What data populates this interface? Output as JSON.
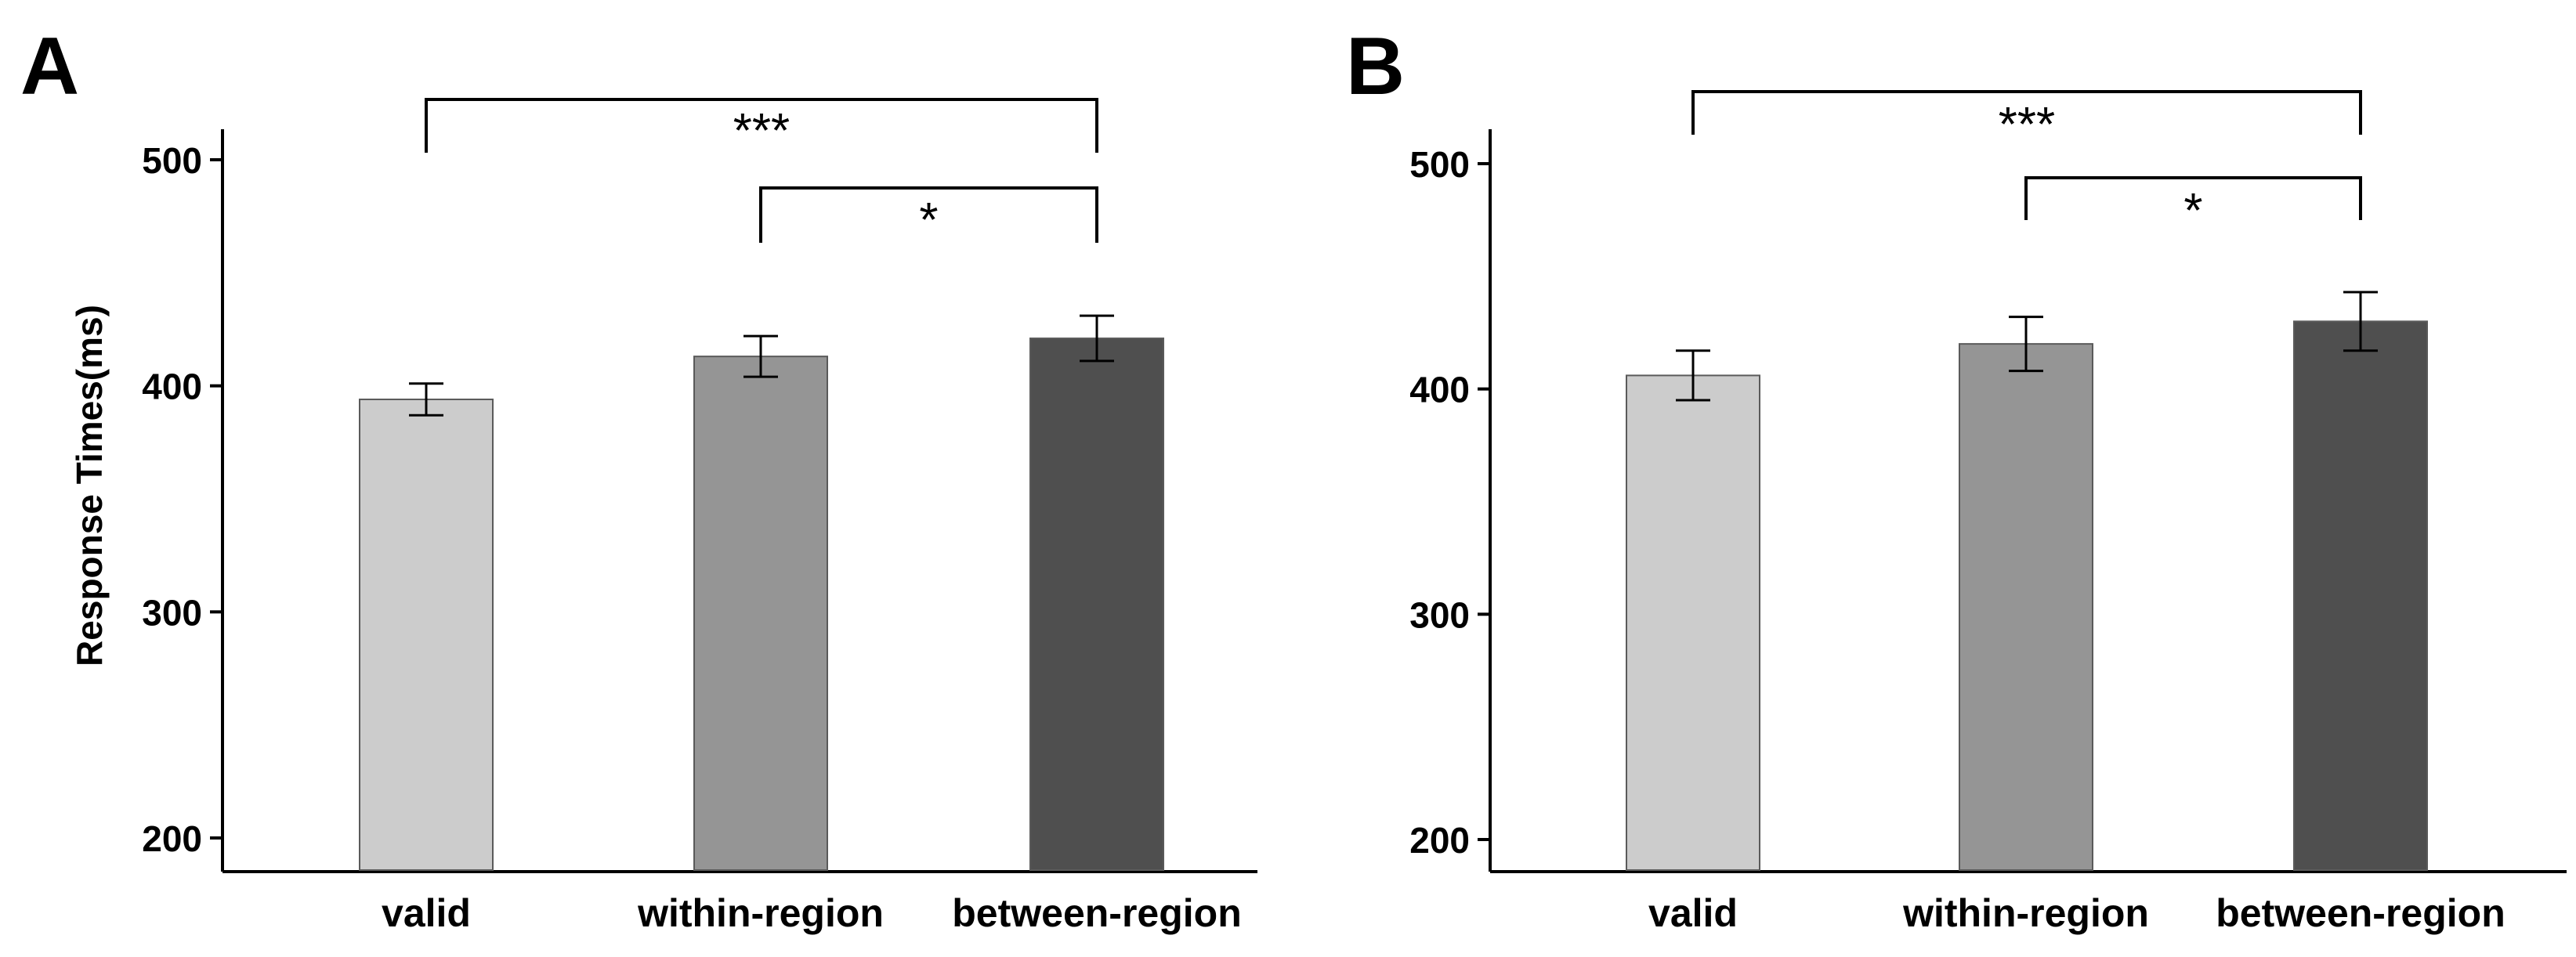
{
  "chart_data": [
    {
      "panel_label": "A",
      "type": "bar",
      "title": "",
      "xlabel": "",
      "ylabel": "Response Times(ms)",
      "ylim": [
        190,
        510
      ],
      "yticks": [
        200,
        300,
        400,
        500
      ],
      "categories": [
        "valid",
        "within-region",
        "between-region"
      ],
      "values": [
        394,
        413,
        421
      ],
      "errors": [
        7,
        9,
        10
      ],
      "colors": [
        "#cccccc",
        "#959595",
        "#4f4f4f"
      ],
      "significance": [
        {
          "from": 0,
          "to": 2,
          "label": "***"
        },
        {
          "from": 1,
          "to": 2,
          "label": "*"
        }
      ]
    },
    {
      "panel_label": "B",
      "type": "bar",
      "title": "",
      "xlabel": "",
      "ylabel": "",
      "ylim": [
        190,
        510
      ],
      "yticks": [
        200,
        300,
        400,
        500
      ],
      "categories": [
        "valid",
        "within-region",
        "between-region"
      ],
      "values": [
        406,
        420,
        430
      ],
      "errors": [
        11,
        12,
        13
      ],
      "colors": [
        "#cccccc",
        "#959595",
        "#4f4f4f"
      ],
      "significance": [
        {
          "from": 0,
          "to": 2,
          "label": "***"
        },
        {
          "from": 1,
          "to": 2,
          "label": "*"
        }
      ]
    }
  ]
}
